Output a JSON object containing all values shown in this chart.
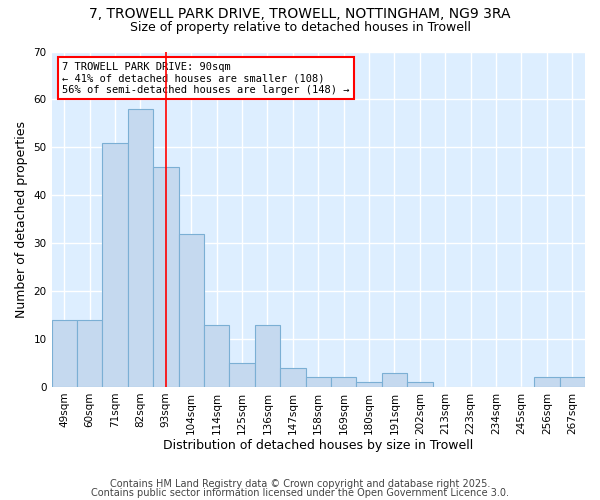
{
  "title": "7, TROWELL PARK DRIVE, TROWELL, NOTTINGHAM, NG9 3RA",
  "subtitle": "Size of property relative to detached houses in Trowell",
  "xlabel": "Distribution of detached houses by size in Trowell",
  "ylabel": "Number of detached properties",
  "footer1": "Contains HM Land Registry data © Crown copyright and database right 2025.",
  "footer2": "Contains public sector information licensed under the Open Government Licence 3.0.",
  "categories": [
    "49sqm",
    "60sqm",
    "71sqm",
    "82sqm",
    "93sqm",
    "104sqm",
    "114sqm",
    "125sqm",
    "136sqm",
    "147sqm",
    "158sqm",
    "169sqm",
    "180sqm",
    "191sqm",
    "202sqm",
    "213sqm",
    "223sqm",
    "234sqm",
    "245sqm",
    "256sqm",
    "267sqm"
  ],
  "values": [
    14,
    14,
    51,
    58,
    46,
    32,
    13,
    5,
    13,
    4,
    2,
    2,
    1,
    3,
    1,
    0,
    0,
    0,
    0,
    2,
    2
  ],
  "bar_color": "#c5d9ef",
  "bar_edge_color": "#7bafd4",
  "subject_bar": "93sqm",
  "subject_line_label": "7 TROWELL PARK DRIVE: 90sqm",
  "annotation_line1": "← 41% of detached houses are smaller (108)",
  "annotation_line2": "56% of semi-detached houses are larger (148) →",
  "annotation_box_color": "white",
  "annotation_box_edge": "red",
  "red_line_color": "red",
  "ylim": [
    0,
    70
  ],
  "yticks": [
    0,
    10,
    20,
    30,
    40,
    50,
    60,
    70
  ],
  "background_color": "#ddeeff",
  "grid_color": "white",
  "title_fontsize": 10,
  "subtitle_fontsize": 9,
  "axis_label_fontsize": 9,
  "tick_fontsize": 7.5,
  "footer_fontsize": 7,
  "annotation_fontsize": 7.5
}
